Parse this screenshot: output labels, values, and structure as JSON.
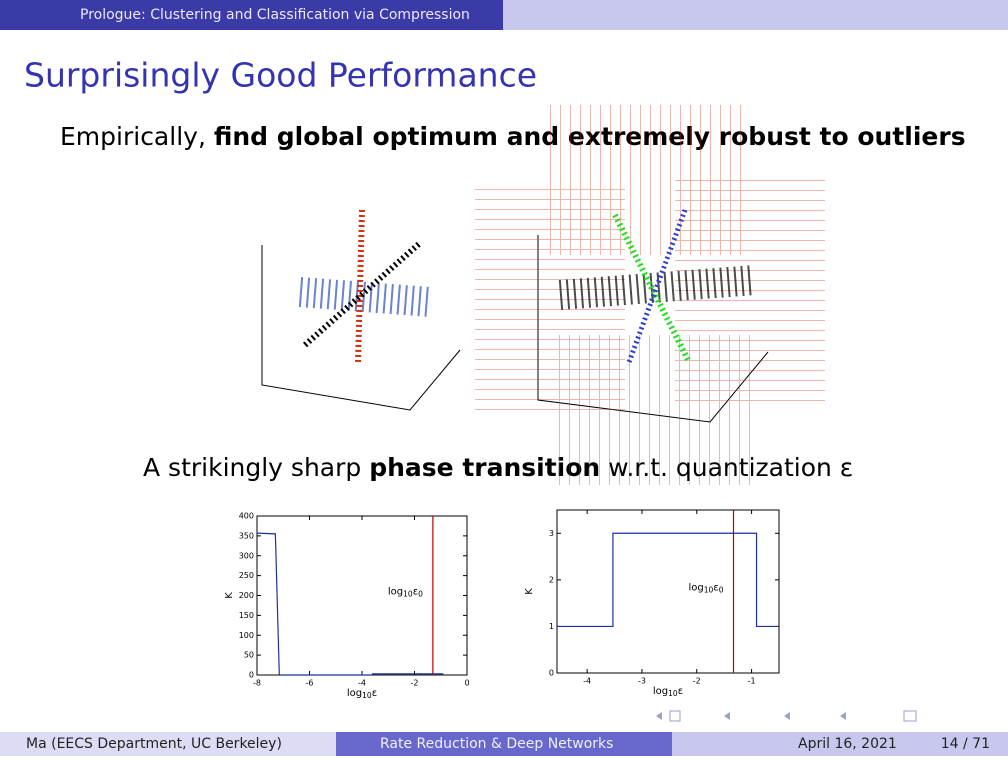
{
  "header": {
    "section": "Prologue: Clustering and Classification via Compression"
  },
  "title": "Surprisingly Good Performance",
  "line1": {
    "plain": "Empirically, ",
    "bold": "find global optimum and extremely robust to outliers"
  },
  "line2": {
    "plain1": "A strikingly sharp ",
    "bold": "phase transition",
    "plain2": " w.r.t. quantization ε"
  },
  "chart_data": [
    {
      "type": "line",
      "x_label": [
        "log",
        "10",
        "ε"
      ],
      "y_label": "K",
      "xlim": [
        -8,
        0
      ],
      "xticks": [
        -8,
        -6,
        -4,
        -2,
        0
      ],
      "ylim": [
        0,
        400
      ],
      "yticks": [
        0,
        50,
        100,
        150,
        200,
        250,
        300,
        350,
        400
      ],
      "x": [
        -8,
        -7.3,
        -7.15,
        -3.6,
        -3.6,
        -0.9
      ],
      "series": [
        {
          "color": "#1f2f9f",
          "values": [
            357,
            355,
            0,
            0,
            3,
            3
          ]
        }
      ],
      "vline": {
        "x": -1.3,
        "color": "#c00000",
        "label": [
          "log",
          "10",
          "ε",
          "0"
        ]
      }
    },
    {
      "type": "line",
      "x_label": [
        "log",
        "10",
        "ε"
      ],
      "y_label": "K",
      "xlim": [
        -4.55,
        -0.5
      ],
      "xticks": [
        -4,
        -3,
        -2,
        -1
      ],
      "ylim": [
        0,
        3.5
      ],
      "yticks": [
        0,
        1,
        2,
        3
      ],
      "x": [
        -4.55,
        -3.53,
        -3.53,
        -0.91,
        -0.91,
        -0.5
      ],
      "series": [
        {
          "color": "#1f2f9f",
          "values": [
            1,
            1,
            3,
            3,
            1,
            1
          ]
        }
      ],
      "vline": {
        "x": -1.33,
        "color": "#c00000",
        "label": [
          "log",
          "10",
          "ε",
          "0"
        ]
      }
    }
  ],
  "footer": {
    "author": "Ma  (EECS Department, UC Berkeley)",
    "short_title": "Rate Reduction & Deep Networks",
    "date": "April 16, 2021",
    "page": "14 / 71"
  }
}
